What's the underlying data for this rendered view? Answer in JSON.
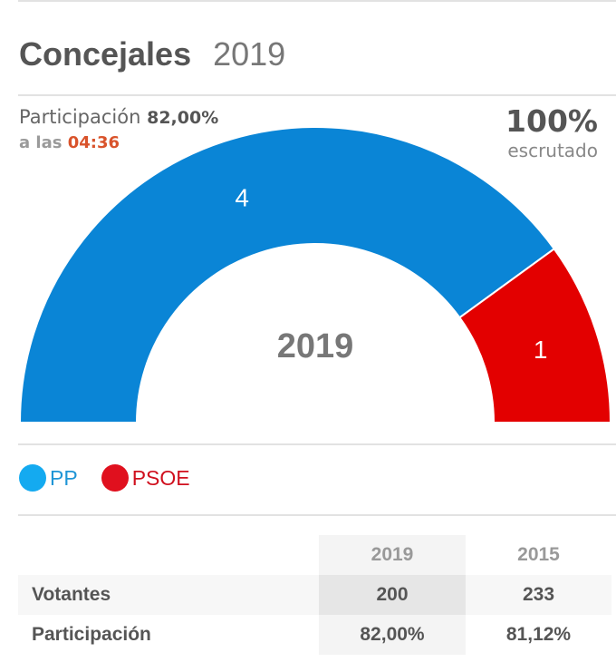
{
  "header": {
    "title": "Concejales",
    "year": "2019"
  },
  "participation": {
    "label": "Participación",
    "value": "82,00%",
    "time_prefix": "a las",
    "time": "04:36"
  },
  "scrutiny": {
    "value": "100%",
    "label": "escrutado"
  },
  "legend": [
    {
      "name": "PP",
      "color": "#14aaf0",
      "text_color": "#1f95d6"
    },
    {
      "name": "PSOE",
      "color": "#e0101e",
      "text_color": "#d0101e"
    }
  ],
  "table": {
    "columns": [
      "2019",
      "2015"
    ],
    "rows": [
      {
        "label": "Votantes",
        "values": [
          "200",
          "233"
        ]
      },
      {
        "label": "Participación",
        "values": [
          "82,00%",
          "81,12%"
        ]
      }
    ]
  },
  "chart_data": {
    "type": "pie",
    "subtype": "semicircle-donut",
    "title": "Concejales 2019",
    "center_label": "2019",
    "total_seats": 5,
    "series": [
      {
        "name": "PP",
        "value": 4,
        "color": "#0a85d6"
      },
      {
        "name": "PSOE",
        "value": 1,
        "color": "#e30000"
      }
    ],
    "legend_position": "bottom-left"
  }
}
